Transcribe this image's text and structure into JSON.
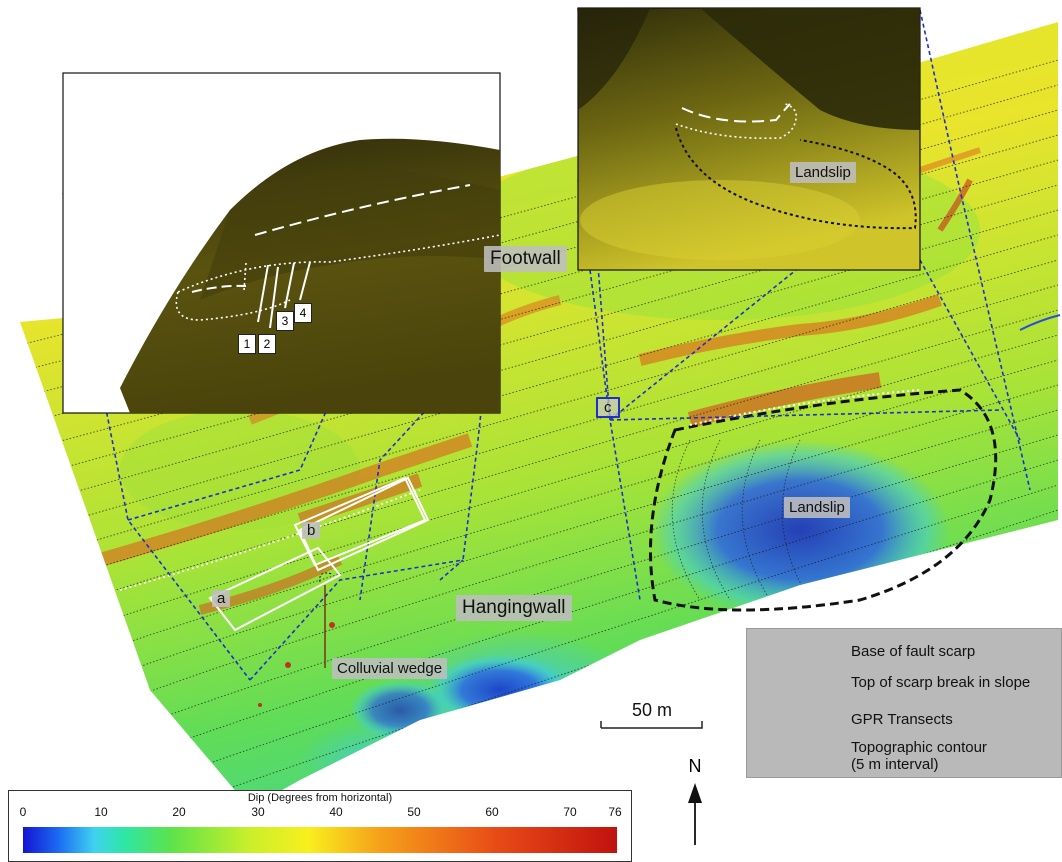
{
  "labels": {
    "footwall": "Footwall",
    "hangingwall": "Hangingwall",
    "landslip_inset": "Landslip",
    "landslip_map": "Landslip",
    "colluvial_wedge": "Colluvial wedge",
    "site_a": "a",
    "site_b": "b",
    "site_c": "c"
  },
  "gpr_transects": [
    "1",
    "2",
    "3",
    "4"
  ],
  "legend": {
    "items": [
      {
        "symbol": "dotted-white",
        "label": "Base of fault scarp"
      },
      {
        "symbol": "dashed-white",
        "label": "Top of scarp break in slope"
      },
      {
        "symbol": "solid-white",
        "label": "GPR Transects"
      },
      {
        "symbol": "dotted-black",
        "label": "Topographic contour",
        "sublabel": "(5 m interval)"
      }
    ]
  },
  "scale_bar": {
    "label": "50 m"
  },
  "north_arrow": {
    "label": "N"
  },
  "colorbar": {
    "title": "Dip (Degrees from horizontal)",
    "ticks": [
      "0",
      "10",
      "20",
      "30",
      "40",
      "50",
      "60",
      "70",
      "76"
    ],
    "min": 0,
    "max": 76,
    "colors": [
      "#1414d2",
      "#3fd2f0",
      "#5de34a",
      "#f8ef1e",
      "#f6a11a",
      "#c0120e"
    ]
  }
}
